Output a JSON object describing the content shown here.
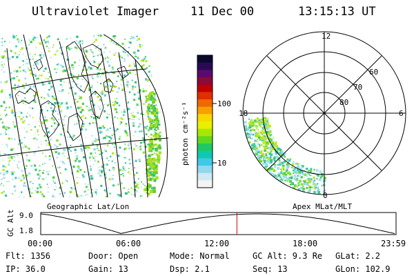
{
  "header": {
    "instrument": "Ultraviolet Imager",
    "date": "11 Dec 00",
    "time": "13:15:13 UT"
  },
  "geo_map": {
    "title": "Geographic Lat/Lon"
  },
  "colorbar": {
    "label": "photon cm⁻²s⁻¹",
    "tick_labels": [
      "100",
      "10"
    ],
    "tick_values": [
      100,
      10
    ],
    "colors": [
      "#0a0a2e",
      "#2a0a55",
      "#5a0a6e",
      "#8a0a3a",
      "#c00000",
      "#e03000",
      "#f06800",
      "#f8a000",
      "#f8d800",
      "#e8f000",
      "#a8e800",
      "#60d820",
      "#20c860",
      "#10c8b0",
      "#40c8e8",
      "#90d8f0",
      "#d0e8f0",
      "#f4f4f4"
    ]
  },
  "polar_plot": {
    "title": "Apex MLat/MLT",
    "mlt_labels": [
      "12",
      "18",
      "6",
      "0"
    ],
    "lat_labels": [
      "60",
      "70",
      "80"
    ]
  },
  "timeline": {
    "ylabel": "GC Alt",
    "y_ticks": [
      "9.0",
      "1.8"
    ],
    "x_ticks": [
      "00:00",
      "06:00",
      "12:00",
      "18:00",
      "23:59"
    ],
    "current_time_marker": "13:15"
  },
  "info": {
    "flt": "Flt: 1356",
    "ip": "IP: 36.0",
    "door": "Door: Open",
    "gain": "Gain: 13",
    "mode": "Mode: Normal",
    "dsp": "Dsp:    2.1",
    "gcalt": "GC Alt: 9.3 Re",
    "seq": "Seq: 13",
    "glat": "GLat:    2.2",
    "glon": "GLon: 102.9"
  },
  "marker_color": "#cc0000"
}
